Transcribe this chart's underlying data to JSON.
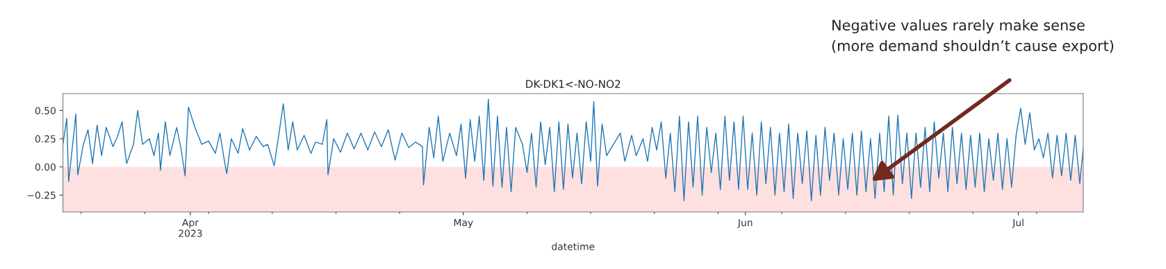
{
  "chart_data": {
    "type": "line",
    "title": "DK-DK1<-NO-NO2",
    "xlabel": "datetime",
    "x": [
      "2023-03-18T00:00",
      "2023-03-18T10:00",
      "2023-03-18T15:00",
      "2023-03-19T00:00",
      "2023-03-19T10:00",
      "2023-03-19T15:00",
      "2023-03-20T06:00",
      "2023-03-20T18:00",
      "2023-03-21T06:00",
      "2023-03-21T18:00",
      "2023-03-22T06:00",
      "2023-03-22T18:00",
      "2023-03-23T12:00",
      "2023-03-24T00:00",
      "2023-03-24T12:00",
      "2023-03-24T20:00",
      "2023-03-25T00:00",
      "2023-03-25T18:00",
      "2023-03-26T05:00",
      "2023-03-26T18:00",
      "2023-03-27T12:00",
      "2023-03-28T00:00",
      "2023-03-28T12:00",
      "2023-03-28T17:00",
      "2023-03-29T06:00",
      "2023-03-29T18:00",
      "2023-03-30T12:00",
      "2023-03-31T00:00",
      "2023-03-31T10:00",
      "2023-03-31T19:00",
      "2023-04-01T12:00",
      "2023-04-02T06:00",
      "2023-04-03T00:00",
      "2023-04-03T18:00",
      "2023-04-04T06:00",
      "2023-04-04T18:00",
      "2023-04-05T00:00",
      "2023-04-05T12:00",
      "2023-04-06T06:00",
      "2023-04-06T18:00",
      "2023-04-07T12:00",
      "2023-04-08T06:00",
      "2023-04-09T00:00",
      "2023-04-09T12:00",
      "2023-04-10T05:00",
      "2023-04-10T18:00",
      "2023-04-11T05:00",
      "2023-04-11T18:00",
      "2023-04-12T06:00",
      "2023-04-12T18:00",
      "2023-04-13T12:00",
      "2023-04-14T06:00",
      "2023-04-14T18:00",
      "2023-04-15T12:00",
      "2023-04-16T00:00",
      "2023-04-16T03:00",
      "2023-04-16T18:00",
      "2023-04-17T12:00",
      "2023-04-18T06:00",
      "2023-04-19T00:00",
      "2023-04-19T18:00",
      "2023-04-20T12:00",
      "2023-04-21T06:00",
      "2023-04-22T00:00",
      "2023-04-22T18:00",
      "2023-04-23T12:00",
      "2023-04-24T06:00",
      "2023-04-25T00:00",
      "2023-04-25T18:00",
      "2023-04-26T12:00",
      "2023-04-26T15:00",
      "2023-04-27T06:00",
      "2023-04-27T18:00",
      "2023-04-28T06:00",
      "2023-04-28T18:00",
      "2023-04-29T12:00",
      "2023-04-30T06:00",
      "2023-04-30T18:00",
      "2023-05-01T06:00",
      "2023-05-01T18:00",
      "2023-05-02T06:00",
      "2023-05-02T18:00",
      "2023-05-03T06:00",
      "2023-05-03T18:00",
      "2023-05-04T06:00",
      "2023-05-04T18:00",
      "2023-05-05T06:00",
      "2023-05-05T18:00",
      "2023-05-06T06:00",
      "2023-05-06T18:00",
      "2023-05-07T12:00",
      "2023-05-08T00:00",
      "2023-05-08T12:00",
      "2023-05-09T00:00",
      "2023-05-09T12:00",
      "2023-05-10T00:00",
      "2023-05-10T12:00",
      "2023-05-11T00:00",
      "2023-05-11T12:00",
      "2023-05-12T00:00",
      "2023-05-12T12:00",
      "2023-05-13T00:00",
      "2023-05-13T12:00",
      "2023-05-14T00:00",
      "2023-05-14T12:00",
      "2023-05-15T00:00",
      "2023-05-15T08:00",
      "2023-05-15T18:00",
      "2023-05-16T06:00",
      "2023-05-16T18:00",
      "2023-05-17T12:00",
      "2023-05-18T06:00",
      "2023-05-18T18:00",
      "2023-05-19T12:00",
      "2023-05-20T00:00",
      "2023-05-20T18:00",
      "2023-05-21T06:00",
      "2023-05-21T18:00",
      "2023-05-22T06:00",
      "2023-05-22T18:00",
      "2023-05-23T06:00",
      "2023-05-23T18:00",
      "2023-05-24T06:00",
      "2023-05-24T18:00",
      "2023-05-25T06:00",
      "2023-05-25T18:00",
      "2023-05-26T06:00",
      "2023-05-26T18:00",
      "2023-05-27T06:00",
      "2023-05-27T18:00",
      "2023-05-28T06:00",
      "2023-05-28T18:00",
      "2023-05-29T06:00",
      "2023-05-29T18:00",
      "2023-05-30T06:00",
      "2023-05-30T18:00",
      "2023-05-31T06:00",
      "2023-05-31T18:00",
      "2023-06-01T06:00",
      "2023-06-01T18:00",
      "2023-06-02T06:00",
      "2023-06-02T18:00",
      "2023-06-03T06:00",
      "2023-06-03T18:00",
      "2023-06-04T06:00",
      "2023-06-04T18:00",
      "2023-06-05T06:00",
      "2023-06-05T18:00",
      "2023-06-06T06:00",
      "2023-06-06T18:00",
      "2023-06-07T06:00",
      "2023-06-07T18:00",
      "2023-06-08T06:00",
      "2023-06-08T18:00",
      "2023-06-09T06:00",
      "2023-06-09T18:00",
      "2023-06-10T06:00",
      "2023-06-10T18:00",
      "2023-06-11T06:00",
      "2023-06-11T18:00",
      "2023-06-12T06:00",
      "2023-06-12T18:00",
      "2023-06-13T06:00",
      "2023-06-13T18:00",
      "2023-06-14T06:00",
      "2023-06-14T18:00",
      "2023-06-15T06:00",
      "2023-06-15T18:00",
      "2023-06-16T06:00",
      "2023-06-16T18:00",
      "2023-06-17T06:00",
      "2023-06-17T18:00",
      "2023-06-18T06:00",
      "2023-06-18T18:00",
      "2023-06-19T06:00",
      "2023-06-19T18:00",
      "2023-06-20T06:00",
      "2023-06-20T18:00",
      "2023-06-21T06:00",
      "2023-06-21T18:00",
      "2023-06-22T06:00",
      "2023-06-22T18:00",
      "2023-06-23T06:00",
      "2023-06-23T18:00",
      "2023-06-24T06:00",
      "2023-06-24T18:00",
      "2023-06-25T06:00",
      "2023-06-25T18:00",
      "2023-06-26T06:00",
      "2023-06-26T18:00",
      "2023-06-27T06:00",
      "2023-06-27T18:00",
      "2023-06-28T06:00",
      "2023-06-28T18:00",
      "2023-06-29T06:00",
      "2023-06-29T18:00",
      "2023-06-30T06:00",
      "2023-06-30T18:00",
      "2023-07-01T06:00",
      "2023-07-01T18:00",
      "2023-07-02T06:00",
      "2023-07-02T18:00",
      "2023-07-03T06:00",
      "2023-07-03T18:00",
      "2023-07-04T06:00",
      "2023-07-04T18:00",
      "2023-07-05T06:00",
      "2023-07-05T18:00",
      "2023-07-06T06:00",
      "2023-07-06T18:00",
      "2023-07-07T06:00",
      "2023-07-07T18:00",
      "2023-07-08T03:00"
    ],
    "series": [
      {
        "color": "#1f77b4",
        "values": [
          0.2,
          0.43,
          -0.13,
          0.15,
          0.47,
          -0.07,
          0.2,
          0.33,
          0.03,
          0.37,
          0.1,
          0.35,
          0.18,
          0.27,
          0.4,
          0.13,
          0.03,
          0.2,
          0.5,
          0.2,
          0.25,
          0.1,
          0.3,
          -0.03,
          0.4,
          0.1,
          0.35,
          0.15,
          -0.08,
          0.53,
          0.35,
          0.2,
          0.23,
          0.12,
          0.3,
          0.05,
          -0.06,
          0.25,
          0.12,
          0.34,
          0.15,
          0.27,
          0.18,
          0.2,
          0.01,
          0.3,
          0.56,
          0.15,
          0.4,
          0.15,
          0.28,
          0.12,
          0.22,
          0.2,
          0.42,
          -0.07,
          0.25,
          0.13,
          0.3,
          0.16,
          0.3,
          0.15,
          0.31,
          0.18,
          0.33,
          0.06,
          0.3,
          0.17,
          0.22,
          0.18,
          -0.16,
          0.35,
          0.08,
          0.45,
          0.05,
          0.3,
          0.1,
          0.38,
          -0.1,
          0.42,
          0.05,
          0.45,
          -0.12,
          0.6,
          -0.17,
          0.45,
          -0.18,
          0.35,
          -0.22,
          0.35,
          0.2,
          -0.05,
          0.3,
          -0.18,
          0.4,
          0.02,
          0.35,
          -0.22,
          0.4,
          -0.2,
          0.38,
          -0.1,
          0.3,
          -0.15,
          0.4,
          0.05,
          0.58,
          -0.17,
          0.38,
          0.1,
          0.2,
          0.3,
          0.05,
          0.28,
          0.1,
          0.25,
          0.05,
          0.35,
          0.15,
          0.4,
          -0.1,
          0.3,
          -0.22,
          0.45,
          -0.3,
          0.4,
          -0.18,
          0.45,
          -0.25,
          0.35,
          -0.05,
          0.3,
          -0.2,
          0.45,
          -0.12,
          0.4,
          -0.2,
          0.45,
          -0.2,
          0.3,
          -0.25,
          0.4,
          -0.15,
          0.35,
          -0.25,
          0.3,
          -0.22,
          0.38,
          -0.28,
          0.3,
          -0.15,
          0.32,
          -0.3,
          0.28,
          -0.25,
          0.35,
          -0.12,
          0.3,
          -0.25,
          0.25,
          -0.2,
          0.3,
          -0.25,
          0.32,
          -0.22,
          0.25,
          -0.28,
          0.3,
          -0.22,
          0.45,
          -0.25,
          0.46,
          -0.15,
          0.3,
          -0.28,
          0.3,
          -0.18,
          0.35,
          -0.22,
          0.4,
          -0.1,
          0.3,
          -0.22,
          0.35,
          -0.15,
          0.3,
          -0.2,
          0.28,
          -0.18,
          0.3,
          -0.22,
          0.25,
          -0.12,
          0.3,
          -0.2,
          0.25,
          -0.18,
          0.28,
          0.52,
          0.2,
          0.48,
          0.15,
          0.25,
          0.08,
          0.3,
          -0.1,
          0.28,
          -0.08,
          0.3,
          -0.12,
          0.28,
          -0.15,
          0.17
        ]
      }
    ],
    "xlim": [
      "2023-03-18T00:00",
      "2023-07-08T03:00"
    ],
    "xticks": [
      {
        "value": "2023-03-20",
        "label": null
      },
      {
        "value": "2023-03-27",
        "label": null
      },
      {
        "value": "2023-04-01",
        "label": "Apr\n2023"
      },
      {
        "value": "2023-04-03",
        "label": null
      },
      {
        "value": "2023-04-10",
        "label": null
      },
      {
        "value": "2023-04-17",
        "label": null
      },
      {
        "value": "2023-04-24",
        "label": null
      },
      {
        "value": "2023-05-01",
        "label": "May"
      },
      {
        "value": "2023-05-08",
        "label": null
      },
      {
        "value": "2023-05-15",
        "label": null
      },
      {
        "value": "2023-05-22",
        "label": null
      },
      {
        "value": "2023-05-29",
        "label": null
      },
      {
        "value": "2023-06-01",
        "label": "Jun"
      },
      {
        "value": "2023-06-05",
        "label": null
      },
      {
        "value": "2023-06-12",
        "label": null
      },
      {
        "value": "2023-06-19",
        "label": null
      },
      {
        "value": "2023-06-26",
        "label": null
      },
      {
        "value": "2023-07-01",
        "label": "Jul"
      },
      {
        "value": "2023-07-03",
        "label": null
      }
    ],
    "ylim": [
      -0.4,
      0.65
    ],
    "yticks": [
      {
        "value": -0.25,
        "label": "−0.25"
      },
      {
        "value": 0,
        "label": "0.00"
      },
      {
        "value": 0.25,
        "label": "0.25"
      },
      {
        "value": 0.5,
        "label": "0.50"
      }
    ],
    "bands": [
      {
        "axis": "y",
        "from": -0.4,
        "to": 0,
        "color": "#ffe0e0"
      }
    ],
    "annotations": [
      "Negative values rarely make sense\n(more demand shouldn’t cause export)"
    ],
    "grid": false,
    "legend": false
  }
}
